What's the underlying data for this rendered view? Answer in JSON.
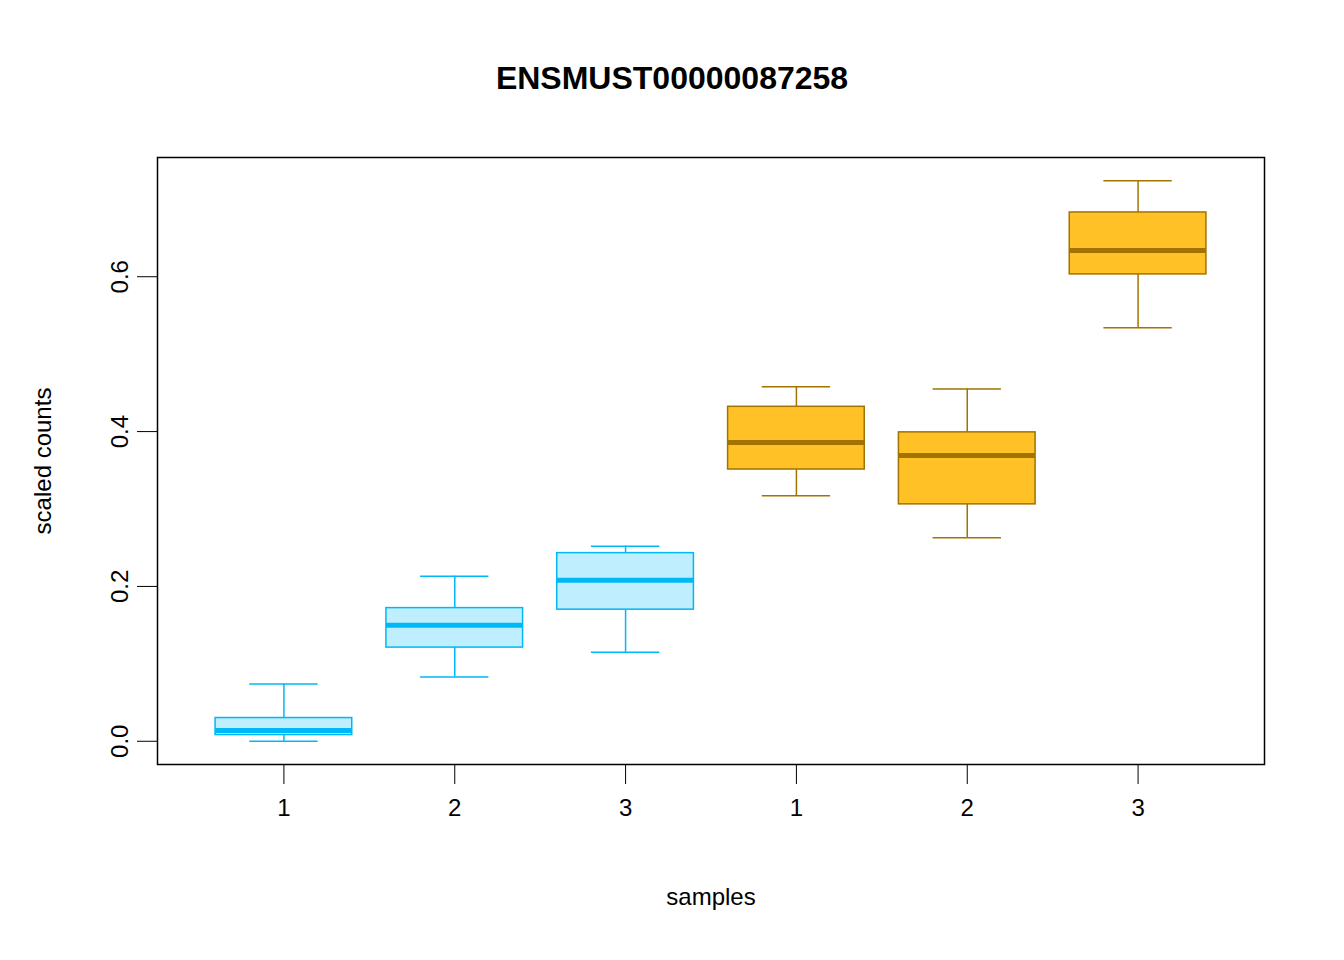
{
  "chart_data": {
    "type": "boxplot",
    "title": "ENSMUST00000087258",
    "x_label": "samples",
    "y_label": "scaled counts",
    "categories": [
      "1",
      "2",
      "3",
      "1",
      "2",
      "3"
    ],
    "boxes": [
      {
        "min": 0.0,
        "q1": 0.008,
        "median": 0.014,
        "q3": 0.03,
        "max": 0.074
      },
      {
        "min": 0.083,
        "q1": 0.121,
        "median": 0.15,
        "q3": 0.172,
        "max": 0.213
      },
      {
        "min": 0.115,
        "q1": 0.17,
        "median": 0.208,
        "q3": 0.243,
        "max": 0.252
      },
      {
        "min": 0.317,
        "q1": 0.351,
        "median": 0.386,
        "q3": 0.432,
        "max": 0.458
      },
      {
        "min": 0.263,
        "q1": 0.306,
        "median": 0.369,
        "q3": 0.399,
        "max": 0.455
      },
      {
        "min": 0.534,
        "q1": 0.603,
        "median": 0.634,
        "q3": 0.683,
        "max": 0.724
      }
    ],
    "colors": [
      "#BFEFFF",
      "#BFEFFF",
      "#BFEFFF",
      "#FFC125",
      "#FFC125",
      "#FFC125"
    ],
    "ylim": [
      -0.03,
      0.754
    ],
    "yticks": [
      {
        "value": 0,
        "label": "0.0"
      },
      0.2,
      0.4,
      0.6
    ],
    "grid": false
  }
}
